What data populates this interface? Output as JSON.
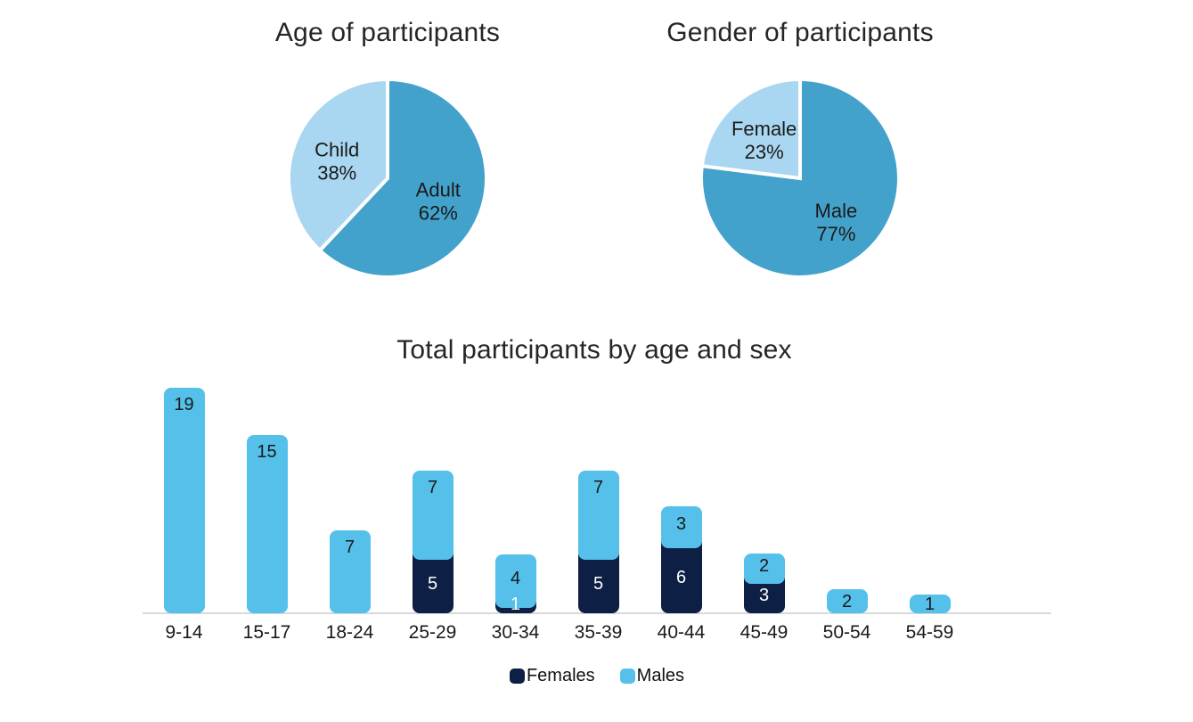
{
  "colors": {
    "pie_dark": "#43a2cb",
    "pie_light": "#a9d6f1",
    "bar_female": "#0d1f44",
    "bar_male": "#55c0ea",
    "axis_line": "#d9d9d9",
    "label_text": "#1a1a1a",
    "label_text_on_dark": "#ffffff",
    "title_text": "#262626"
  },
  "chart_data": [
    {
      "type": "pie",
      "title": "Age of participants",
      "start_angle_deg": 0,
      "direction": "clockwise",
      "labels_inside": true,
      "slices": [
        {
          "label": "Adult",
          "value": 62,
          "pct_label": "62%",
          "color_key": "pie_dark"
        },
        {
          "label": "Child",
          "value": 38,
          "pct_label": "38%",
          "color_key": "pie_light"
        }
      ]
    },
    {
      "type": "pie",
      "title": "Gender of participants",
      "start_angle_deg": 0,
      "direction": "clockwise",
      "labels_inside": true,
      "slices": [
        {
          "label": "Male",
          "value": 77,
          "pct_label": "77%",
          "color_key": "pie_dark"
        },
        {
          "label": "Female",
          "value": 23,
          "pct_label": "23%",
          "color_key": "pie_light"
        }
      ]
    },
    {
      "type": "bar",
      "stacked": true,
      "title": "Total participants by age and sex",
      "categories": [
        "9-14",
        "15-17",
        "18-24",
        "25-29",
        "30-34",
        "35-39",
        "40-44",
        "45-49",
        "50-54",
        "54-59"
      ],
      "series": [
        {
          "name": "Females",
          "color_key": "bar_female",
          "values": [
            0,
            0,
            0,
            5,
            1,
            5,
            6,
            3,
            0,
            0
          ]
        },
        {
          "name": "Males",
          "color_key": "bar_male",
          "values": [
            19,
            15,
            7,
            7,
            4,
            7,
            3,
            2,
            2,
            1
          ]
        }
      ],
      "ylim": [
        0,
        19
      ],
      "grid": false,
      "value_labels": true,
      "legend": {
        "position": "bottom",
        "items": [
          "Females",
          "Males"
        ]
      }
    }
  ]
}
